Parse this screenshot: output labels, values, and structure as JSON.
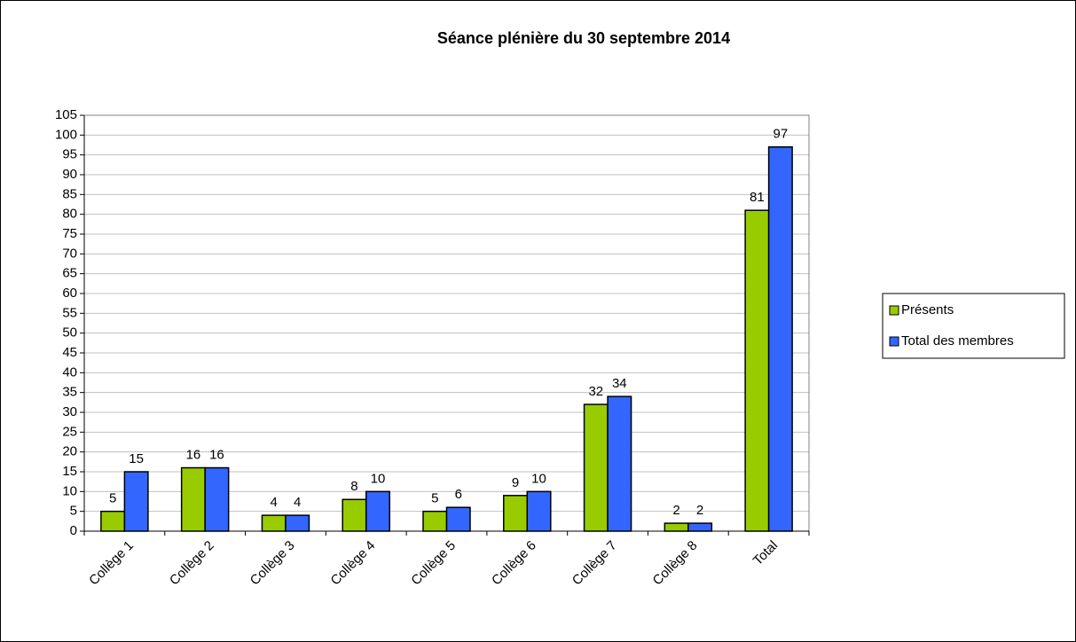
{
  "chart_data": {
    "type": "bar",
    "title": "Séance plénière du 30 septembre 2014",
    "categories": [
      "Collège 1",
      "Collège 2",
      "Collège 3",
      "Collège 4",
      "Collège 5",
      "Collège 6",
      "Collège 7",
      "Collège 8",
      "Total"
    ],
    "series": [
      {
        "name": "Présents",
        "color": "#99cc00",
        "values": [
          5,
          16,
          4,
          8,
          5,
          9,
          32,
          2,
          81
        ]
      },
      {
        "name": "Total des membres",
        "color": "#3366ff",
        "values": [
          15,
          16,
          4,
          10,
          6,
          10,
          34,
          2,
          97
        ]
      }
    ],
    "ylim": [
      0,
      105
    ],
    "yticks": [
      0,
      5,
      10,
      15,
      20,
      25,
      30,
      35,
      40,
      45,
      50,
      55,
      60,
      65,
      70,
      75,
      80,
      85,
      90,
      95,
      100,
      105
    ],
    "grid": true,
    "legend": "right"
  }
}
